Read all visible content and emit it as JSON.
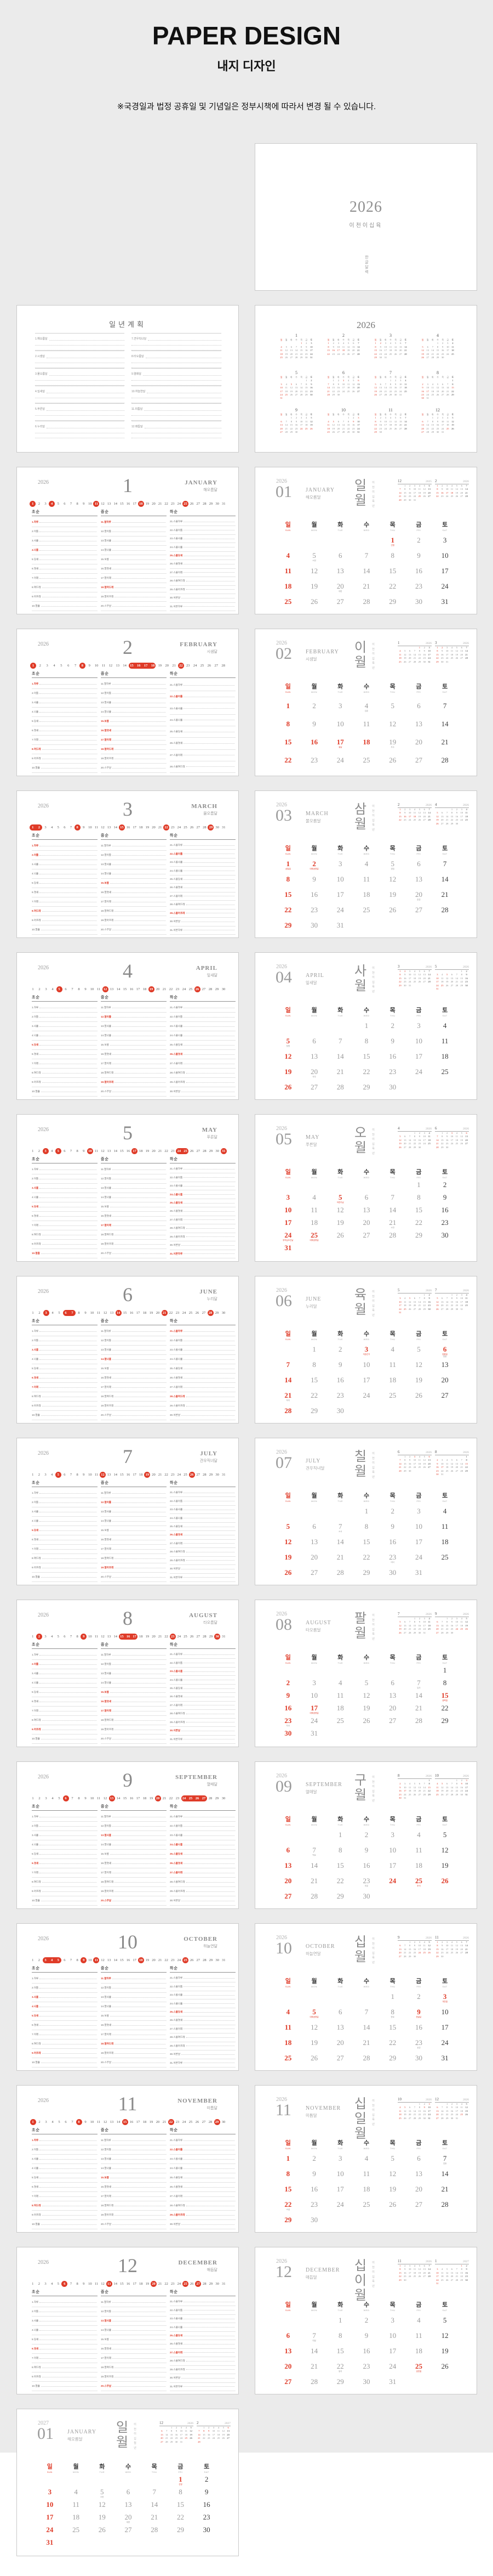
{
  "header": {
    "title": "PAPER DESIGN",
    "subtitle": "내지 디자인",
    "note": "※국경일과 법정 공휴일 및 기념일은 정부시책에 따라서 변경 될 수 있습니다."
  },
  "colors": {
    "accent_red": "#df3b28",
    "board_gray": "#ebebeb",
    "page_border": "#c9c9c9"
  },
  "cover": {
    "year": "2026",
    "year_kr": "이천이십육",
    "vertical_text": "한글달력"
  },
  "plan_page": {
    "title": "일년계획",
    "left_entries": [
      "1.해오름달",
      "2.시샘달",
      "3.물오름달",
      "4.잎새달",
      "5.푸른달",
      "6.누리달"
    ],
    "right_entries": [
      "7.견우직녀달",
      "8.타오름달",
      "9.열매달",
      "10.하늘연달",
      "11.미틈달",
      "12.매듭달"
    ]
  },
  "year_page": {
    "title": "2026"
  },
  "weekdays_kr": [
    "일",
    "월",
    "화",
    "수",
    "목",
    "금",
    "토"
  ],
  "weekdays_en": [
    "SUN",
    "MON",
    "TUE",
    "WED",
    "THU",
    "FRI",
    "SAT"
  ],
  "section_headers": [
    "초순",
    "중순",
    "하순"
  ],
  "day_names": [
    "하루",
    "이틀",
    "사흘",
    "나흘",
    "닷새",
    "엿새",
    "이레",
    "여드레",
    "아흐레",
    "열흘",
    "열하루",
    "열이틀",
    "열사흘",
    "열나흘",
    "보름",
    "열엿새",
    "열이레",
    "열여드레",
    "열아흐레",
    "스무날",
    "스물하루",
    "스물이틀",
    "스물사흘",
    "스물나흘",
    "스물닷새",
    "스물엿새",
    "스물이레",
    "스물여드레",
    "스물아흐레",
    "서른날",
    "서른하루"
  ],
  "year_vertical_2026": "이천이십육년",
  "calendars": {
    "2025-12": {
      "n": "12",
      "y": "2025",
      "days": 31,
      "start": 1,
      "red": [
        7,
        14,
        21,
        25,
        28
      ]
    },
    "2026-01": {
      "n": "1",
      "y": "2026",
      "days": 31,
      "start": 4,
      "red": [
        1,
        4,
        11,
        18,
        25
      ]
    },
    "2026-02": {
      "n": "2",
      "y": "2026",
      "days": 28,
      "start": 0,
      "red": [
        1,
        8,
        15,
        16,
        17,
        18,
        22
      ]
    },
    "2026-03": {
      "n": "3",
      "y": "2026",
      "days": 31,
      "start": 0,
      "red": [
        1,
        2,
        8,
        15,
        22,
        29
      ]
    },
    "2026-04": {
      "n": "4",
      "y": "2026",
      "days": 30,
      "start": 3,
      "red": [
        5,
        12,
        19,
        26
      ]
    },
    "2026-05": {
      "n": "5",
      "y": "2026",
      "days": 31,
      "start": 5,
      "red": [
        3,
        5,
        10,
        17,
        24,
        25,
        31
      ]
    },
    "2026-06": {
      "n": "6",
      "y": "2026",
      "days": 30,
      "start": 1,
      "red": [
        3,
        6,
        7,
        14,
        21,
        28
      ]
    },
    "2026-07": {
      "n": "7",
      "y": "2026",
      "days": 31,
      "start": 3,
      "red": [
        5,
        12,
        19,
        26
      ]
    },
    "2026-08": {
      "n": "8",
      "y": "2026",
      "days": 31,
      "start": 6,
      "red": [
        2,
        9,
        15,
        16,
        17,
        23,
        30
      ]
    },
    "2026-09": {
      "n": "9",
      "y": "2026",
      "days": 30,
      "start": 2,
      "red": [
        6,
        13,
        20,
        24,
        25,
        26,
        27
      ]
    },
    "2026-10": {
      "n": "10",
      "y": "2026",
      "days": 31,
      "start": 4,
      "red": [
        3,
        4,
        5,
        9,
        11,
        18,
        25
      ]
    },
    "2026-11": {
      "n": "11",
      "y": "2026",
      "days": 30,
      "start": 0,
      "red": [
        1,
        8,
        15,
        22,
        29
      ]
    },
    "2026-12": {
      "n": "12",
      "y": "2026",
      "days": 31,
      "start": 2,
      "red": [
        6,
        13,
        20,
        25,
        27
      ]
    },
    "2027-01": {
      "n": "1",
      "y": "2027",
      "days": 31,
      "start": 5,
      "red": [
        1,
        3,
        10,
        17,
        24,
        31
      ]
    },
    "2027-02": {
      "n": "2",
      "y": "2027",
      "days": 28,
      "start": 1,
      "red": [
        6,
        7,
        8,
        9,
        14,
        21,
        28
      ]
    }
  },
  "months": [
    {
      "key": "2026-01",
      "num": "01",
      "n_list": "1",
      "year": "2026",
      "en": "JANUARY",
      "kr": "해오름달",
      "sino": "일월",
      "prev": "2025-12",
      "next": "2026-02",
      "ann": [
        [
          1,
          "신정",
          1
        ],
        [
          5,
          "소한",
          0
        ],
        [
          20,
          "대한",
          0
        ]
      ]
    },
    {
      "key": "2026-02",
      "num": "02",
      "n_list": "2",
      "year": "2026",
      "en": "FEBRUARY",
      "kr": "시샘달",
      "sino": "이월",
      "prev": "2026-01",
      "next": "2026-03",
      "ann": [
        [
          4,
          "입춘",
          0
        ],
        [
          17,
          "설날",
          1
        ],
        [
          19,
          "우수",
          0
        ]
      ]
    },
    {
      "key": "2026-03",
      "num": "03",
      "n_list": "3",
      "year": "2026",
      "en": "MARCH",
      "kr": "물오름달",
      "sino": "삼월",
      "prev": "2026-02",
      "next": "2026-04",
      "ann": [
        [
          1,
          "삼일절",
          1
        ],
        [
          2,
          "대체공휴일",
          1
        ],
        [
          5,
          "경칩",
          0
        ],
        [
          20,
          "춘분",
          0
        ]
      ]
    },
    {
      "key": "2026-04",
      "num": "04",
      "n_list": "4",
      "year": "2026",
      "en": "APRIL",
      "kr": "잎새달",
      "sino": "사월",
      "prev": "2026-03",
      "next": "2026-05",
      "ann": [
        [
          5,
          "청명",
          0
        ],
        [
          20,
          "곡우",
          0
        ]
      ]
    },
    {
      "key": "2026-05",
      "num": "05",
      "n_list": "5",
      "year": "2026",
      "en": "MAY",
      "kr": "푸른달",
      "sino": "오월",
      "prev": "2026-04",
      "next": "2026-06",
      "ann": [
        [
          5,
          "어린이날",
          1
        ],
        [
          21,
          "소만",
          0
        ],
        [
          24,
          "부처님오신날",
          1
        ],
        [
          25,
          "대체공휴일",
          1
        ]
      ]
    },
    {
      "key": "2026-06",
      "num": "06",
      "n_list": "6",
      "year": "2026",
      "en": "JUNE",
      "kr": "누리달",
      "sino": "육월",
      "prev": "2026-05",
      "next": "2026-07",
      "ann": [
        [
          3,
          "지방선거",
          1
        ],
        [
          6,
          "현충일",
          1
        ],
        [
          6,
          "망종",
          0
        ],
        [
          21,
          "하지",
          0
        ]
      ]
    },
    {
      "key": "2026-07",
      "num": "07",
      "n_list": "7",
      "year": "2026",
      "en": "JULY",
      "kr": "견우직녀달",
      "sino": "칠월",
      "prev": "2026-06",
      "next": "2026-08",
      "ann": [
        [
          7,
          "소서",
          0
        ],
        [
          23,
          "대서",
          0
        ]
      ]
    },
    {
      "key": "2026-08",
      "num": "08",
      "n_list": "8",
      "year": "2026",
      "en": "AUGUST",
      "kr": "타오름달",
      "sino": "팔월",
      "prev": "2026-07",
      "next": "2026-09",
      "ann": [
        [
          7,
          "입추",
          0
        ],
        [
          15,
          "광복절",
          1
        ],
        [
          17,
          "대체공휴일",
          1
        ],
        [
          23,
          "처서",
          0
        ]
      ]
    },
    {
      "key": "2026-09",
      "num": "09",
      "n_list": "9",
      "year": "2026",
      "en": "SEPTEMBER",
      "kr": "열매달",
      "sino": "구월",
      "prev": "2026-08",
      "next": "2026-10",
      "ann": [
        [
          7,
          "백로",
          0
        ],
        [
          23,
          "추분",
          0
        ],
        [
          25,
          "추석",
          1
        ]
      ]
    },
    {
      "key": "2026-10",
      "num": "10",
      "n_list": "10",
      "year": "2026",
      "en": "OCTOBER",
      "kr": "하늘연달",
      "sino": "십월",
      "prev": "2026-09",
      "next": "2026-11",
      "ann": [
        [
          3,
          "개천절",
          1
        ],
        [
          5,
          "대체공휴일",
          1
        ],
        [
          8,
          "한로",
          0
        ],
        [
          9,
          "한글날",
          1
        ],
        [
          23,
          "상강",
          0
        ]
      ]
    },
    {
      "key": "2026-11",
      "num": "11",
      "n_list": "11",
      "year": "2026",
      "en": "NOVEMBER",
      "kr": "미틈달",
      "sino": "십일월",
      "prev": "2026-10",
      "next": "2026-12",
      "ann": [
        [
          7,
          "입동",
          0
        ],
        [
          22,
          "소설",
          0
        ]
      ]
    },
    {
      "key": "2026-12",
      "num": "12",
      "n_list": "12",
      "year": "2026",
      "en": "DECEMBER",
      "kr": "매듭달",
      "sino": "십이월",
      "prev": "2026-11",
      "next": "2027-01",
      "ann": [
        [
          7,
          "대설",
          0
        ],
        [
          22,
          "동지",
          0
        ],
        [
          25,
          "성탄절",
          1
        ]
      ]
    }
  ],
  "last_page": {
    "key": "2027-01",
    "num": "01",
    "year": "2027",
    "en": "JANUARY",
    "kr": "해오름달",
    "sino": "일월",
    "year_vertical": "이천이십칠년",
    "prev": "2026-12",
    "next": "2027-02",
    "ann": [
      [
        1,
        "신정",
        1
      ],
      [
        5,
        "소한",
        0
      ],
      [
        20,
        "대한",
        0
      ]
    ]
  }
}
